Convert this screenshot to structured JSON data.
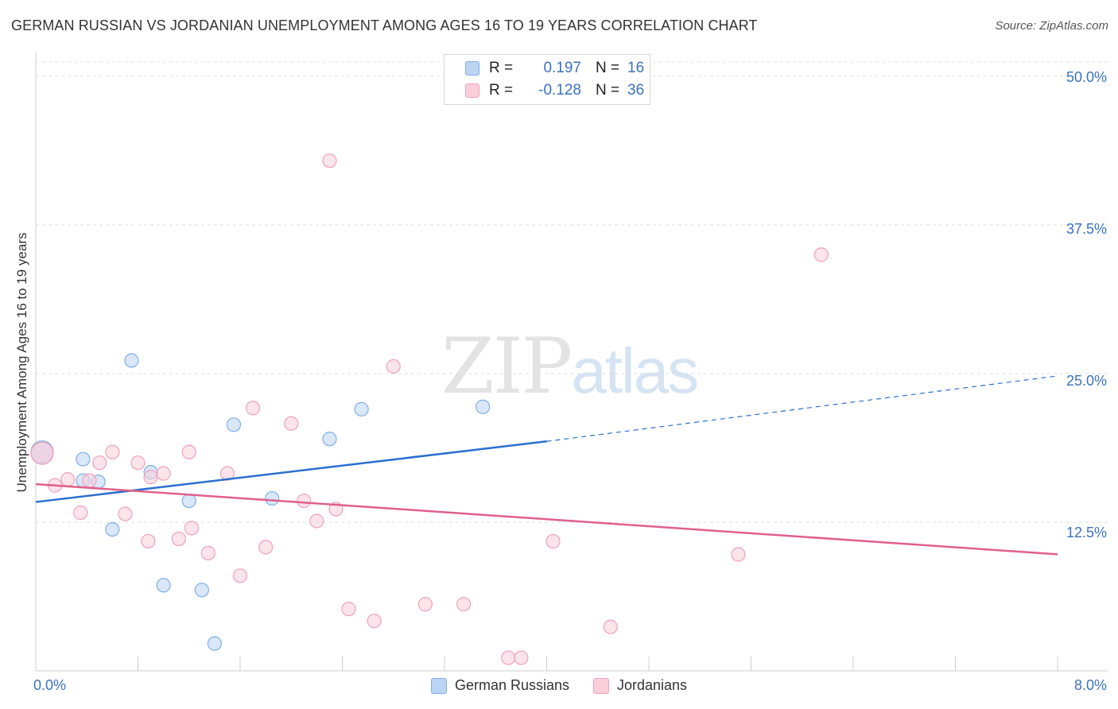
{
  "title": "GERMAN RUSSIAN VS JORDANIAN UNEMPLOYMENT AMONG AGES 16 TO 19 YEARS CORRELATION CHART",
  "source": "Source: ZipAtlas.com",
  "watermark": {
    "zip": "ZIP",
    "atlas": "atlas"
  },
  "legend": {
    "rows": [
      {
        "r_label": "R =",
        "r_value": "0.197",
        "n_label": "N =",
        "n_value": "16"
      },
      {
        "r_label": "R =",
        "r_value": "-0.128",
        "n_label": "N =",
        "n_value": "36"
      }
    ]
  },
  "chart_data": {
    "type": "scatter",
    "title": "GERMAN RUSSIAN VS JORDANIAN UNEMPLOYMENT AMONG AGES 16 TO 19 YEARS CORRELATION CHART",
    "xlabel": "",
    "ylabel": "Unemployment Among Ages 16 to 19 years",
    "xlim": [
      0,
      8
    ],
    "ylim": [
      0,
      50
    ],
    "x_tick_labels": [
      "0.0%",
      "8.0%"
    ],
    "y_ticks": [
      12.5,
      25.0,
      37.5,
      50.0
    ],
    "y_tick_labels": [
      "12.5%",
      "25.0%",
      "37.5%",
      "50.0%"
    ],
    "grid": true,
    "legend_position": "bottom-center",
    "series": [
      {
        "name": "German Russians",
        "color": "#7eaee8",
        "fill": "#bcd4f3",
        "line_color": "#2a6fcf",
        "R": 0.197,
        "N": 16,
        "trend": {
          "x_start": 0.0,
          "y_start": 14.2,
          "x_solid_end": 4.0,
          "y_solid_end": 19.3,
          "x_end": 8.0,
          "y_end": 24.8
        },
        "points": [
          [
            0.05,
            18.4
          ],
          [
            0.37,
            17.8
          ],
          [
            0.37,
            16.0
          ],
          [
            0.49,
            15.9
          ],
          [
            0.6,
            11.9
          ],
          [
            0.75,
            26.1
          ],
          [
            0.9,
            16.7
          ],
          [
            1.0,
            7.2
          ],
          [
            1.2,
            14.3
          ],
          [
            1.3,
            6.8
          ],
          [
            1.4,
            2.3
          ],
          [
            1.55,
            20.7
          ],
          [
            1.85,
            14.5
          ],
          [
            2.3,
            19.5
          ],
          [
            2.55,
            22.0
          ],
          [
            3.5,
            22.2
          ]
        ]
      },
      {
        "name": "Jordanians",
        "color": "#f0a0b8",
        "fill": "#f9cdda",
        "line_color": "#e0608a",
        "R": -0.128,
        "N": 36,
        "trend": {
          "x_start": 0.0,
          "y_start": 15.7,
          "x_end": 8.0,
          "y_end": 9.8
        },
        "points": [
          [
            0.05,
            18.3
          ],
          [
            0.15,
            15.6
          ],
          [
            0.25,
            16.1
          ],
          [
            0.35,
            13.3
          ],
          [
            0.42,
            16.0
          ],
          [
            0.5,
            17.5
          ],
          [
            0.6,
            18.4
          ],
          [
            0.7,
            13.2
          ],
          [
            0.8,
            17.5
          ],
          [
            0.88,
            10.9
          ],
          [
            0.9,
            16.3
          ],
          [
            1.0,
            16.6
          ],
          [
            1.12,
            11.1
          ],
          [
            1.2,
            18.4
          ],
          [
            1.22,
            12.0
          ],
          [
            1.35,
            9.9
          ],
          [
            1.5,
            16.6
          ],
          [
            1.6,
            8.0
          ],
          [
            1.7,
            22.1
          ],
          [
            1.8,
            10.4
          ],
          [
            2.0,
            20.8
          ],
          [
            2.1,
            14.3
          ],
          [
            2.2,
            12.6
          ],
          [
            2.35,
            13.6
          ],
          [
            2.3,
            42.9
          ],
          [
            2.45,
            5.2
          ],
          [
            2.65,
            4.2
          ],
          [
            2.8,
            25.6
          ],
          [
            3.05,
            5.6
          ],
          [
            3.35,
            5.6
          ],
          [
            3.7,
            1.1
          ],
          [
            3.8,
            1.1
          ],
          [
            4.05,
            10.9
          ],
          [
            4.5,
            3.7
          ],
          [
            5.5,
            9.8
          ],
          [
            6.15,
            35.0
          ]
        ]
      }
    ]
  }
}
